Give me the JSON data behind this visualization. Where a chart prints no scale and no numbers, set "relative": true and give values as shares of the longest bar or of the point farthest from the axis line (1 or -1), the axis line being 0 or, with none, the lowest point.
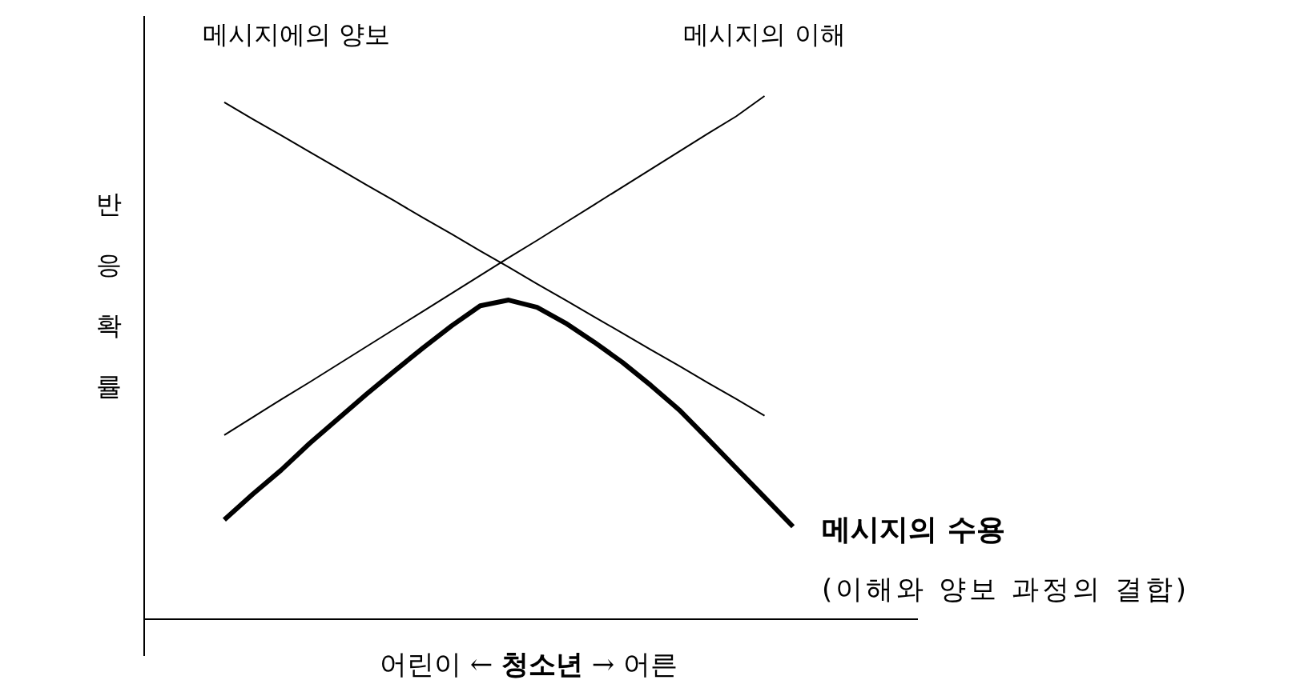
{
  "chart_data": {
    "type": "line",
    "relative": true,
    "xlabel": "어린이 ← **청소년** → 어른",
    "ylabel": "반응 확률",
    "categories": [
      null,
      null,
      null,
      null,
      null,
      null,
      null,
      null,
      null,
      null,
      null,
      null,
      null,
      null,
      null,
      null,
      null,
      null,
      null,
      null,
      null
    ],
    "series": [
      {
        "name": "메시지에의 양보",
        "color": "#000000",
        "values": [
          0.988,
          0.956,
          0.925,
          0.893,
          0.862,
          0.83,
          0.799,
          0.767,
          0.736,
          0.704,
          0.673,
          0.641,
          0.61,
          0.578,
          0.547,
          0.515,
          0.484,
          0.452,
          0.421,
          0.389,
          null
        ]
      },
      {
        "name": "메시지의 이해",
        "color": "#000000",
        "values": [
          0.352,
          0.386,
          0.42,
          0.453,
          0.487,
          0.521,
          0.555,
          0.589,
          0.623,
          0.657,
          0.691,
          0.724,
          0.758,
          0.792,
          0.826,
          0.86,
          0.894,
          0.928,
          0.961,
          1,
          null
        ]
      },
      {
        "name": "**메시지의 수용**",
        "color": "#000000",
        "values": [
          0.19,
          0.239,
          0.285,
          0.336,
          0.383,
          0.43,
          0.475,
          0.519,
          0.561,
          0.599,
          0.61,
          0.596,
          0.566,
          0.53,
          0.491,
          0.447,
          0.4,
          0.345,
          0.289,
          0.233,
          0.177
        ]
      }
    ],
    "annotations": [
      "(이해와 양보 과정의 결합)"
    ]
  }
}
